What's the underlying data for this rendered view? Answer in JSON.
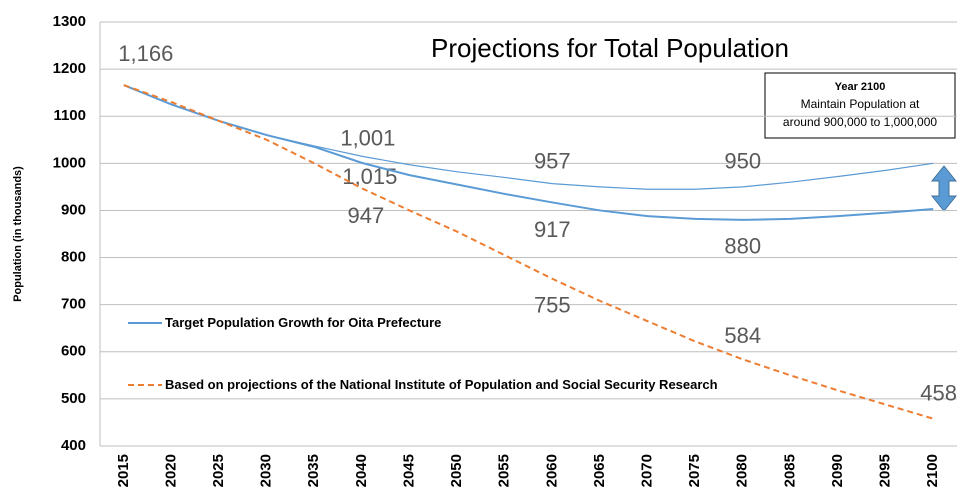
{
  "chart_data": {
    "type": "line",
    "title": "Projections for Total Population",
    "y_label": "Population  (in thousands)",
    "categories": [
      "2015",
      "2020",
      "2025",
      "2030",
      "2035",
      "2040",
      "2045",
      "2050",
      "2055",
      "2060",
      "2065",
      "2070",
      "2075",
      "2080",
      "2085",
      "2090",
      "2095",
      "2100"
    ],
    "ylim": [
      400,
      1300
    ],
    "yticks": [
      400,
      500,
      600,
      700,
      800,
      900,
      1000,
      1100,
      1200,
      1300
    ],
    "grid": true,
    "legend": "inside-left",
    "annotation": {
      "title": "Year 2100",
      "lines": [
        "Maintain Population at",
        "around 900,000 to 1,000,000"
      ]
    },
    "series": [
      {
        "name": "Target Population Growth for Oita Prefecture",
        "color": "#5b9bd5",
        "dash": false,
        "legend": true,
        "values": [
          1166,
          1125,
          1090,
          1060,
          1037,
          1015,
          997,
          982,
          970,
          957,
          950,
          945,
          945,
          950,
          960,
          972,
          985,
          1000
        ],
        "value_labels": [
          "1,166",
          null,
          null,
          null,
          null,
          "1,015",
          null,
          null,
          null,
          "957",
          null,
          null,
          null,
          "950",
          null,
          null,
          null,
          null
        ]
      },
      {
        "color": "#5b9bd5",
        "dash": false,
        "legend": false,
        "values": [
          1166,
          1125,
          1090,
          1060,
          1035,
          1001,
          975,
          955,
          935,
          917,
          900,
          888,
          882,
          880,
          882,
          888,
          895,
          903
        ],
        "value_labels": [
          null,
          null,
          null,
          null,
          null,
          "1,001",
          null,
          null,
          null,
          "917",
          null,
          null,
          null,
          "880",
          null,
          null,
          null,
          null
        ]
      },
      {
        "name": "Based on projections of the National Institute of Population and Social Security Research",
        "color": "#ed7d31",
        "dash": true,
        "legend": true,
        "values": [
          1166,
          1130,
          1090,
          1050,
          1000,
          947,
          900,
          855,
          805,
          755,
          708,
          665,
          622,
          584,
          550,
          518,
          488,
          458
        ],
        "value_labels": [
          null,
          null,
          null,
          null,
          null,
          "947",
          null,
          null,
          null,
          "755",
          null,
          null,
          null,
          "584",
          null,
          null,
          null,
          "458"
        ]
      }
    ]
  }
}
